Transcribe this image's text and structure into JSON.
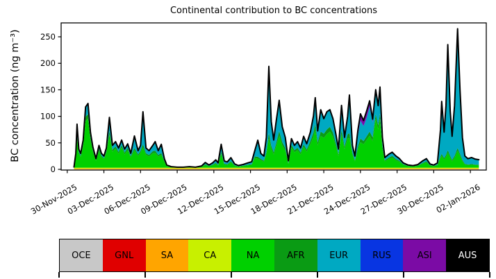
{
  "figure": {
    "title": "Continental contribution to BC concentrations",
    "ylabel": "BC concentration (ng m⁻³)"
  },
  "chart_data": {
    "type": "area",
    "stacked": true,
    "title": "Continental contribution to BC concentrations",
    "xlabel": "",
    "ylabel": "BC concentration (ng m⁻³)",
    "grid": false,
    "legend_position": "bottom-strip",
    "ylim": [
      -1.3,
      276.2
    ],
    "xlim_days": [
      -0.5,
      34.3
    ],
    "x_unit": "days since 30-Nov-2025 00:00",
    "yticks": [
      0,
      50,
      100,
      150,
      200,
      250
    ],
    "xticks": {
      "day_offsets": [
        0,
        3,
        6,
        9,
        12,
        15,
        18,
        21,
        24,
        27,
        30,
        33
      ],
      "labels": [
        "30-Nov-2025",
        "03-Dec-2025",
        "06-Dec-2025",
        "09-Dec-2025",
        "12-Dec-2025",
        "15-Dec-2025",
        "18-Dec-2025",
        "21-Dec-2025",
        "24-Dec-2025",
        "27-Dec-2025",
        "30-Dec-2025",
        "02-Jan-2026"
      ]
    },
    "series_order": [
      "OCE",
      "GNL",
      "SA",
      "CA",
      "NA",
      "AFR",
      "EUR",
      "RUS",
      "ASI",
      "AUS"
    ],
    "colors": {
      "OCE": "#c8c8c8",
      "GNL": "#e00000",
      "SA": "#ffa500",
      "CA": "#c8f000",
      "NA": "#00d000",
      "AFR": "#0a9b14",
      "EUR": "#00a9c2",
      "RUS": "#0835e2",
      "ASI": "#7b0ba5",
      "AUS": "#000000"
    },
    "total_line_color": "#000000",
    "t_days": [
      0.55,
      0.7,
      0.8,
      0.95,
      1.1,
      1.3,
      1.5,
      1.7,
      1.9,
      2.1,
      2.35,
      2.6,
      2.8,
      3.0,
      3.2,
      3.45,
      3.7,
      3.95,
      4.2,
      4.45,
      4.7,
      4.95,
      5.2,
      5.5,
      5.8,
      6.0,
      6.2,
      6.45,
      6.7,
      7.0,
      7.2,
      7.45,
      7.7,
      7.95,
      8.15,
      8.5,
      9.0,
      9.5,
      10.0,
      10.5,
      11.0,
      11.3,
      11.6,
      11.9,
      12.15,
      12.35,
      12.6,
      12.85,
      13.1,
      13.4,
      13.7,
      14.0,
      14.4,
      14.8,
      15.1,
      15.35,
      15.6,
      15.85,
      16.1,
      16.3,
      16.5,
      16.7,
      16.9,
      17.1,
      17.35,
      17.6,
      17.85,
      18.1,
      18.35,
      18.6,
      18.85,
      19.1,
      19.35,
      19.6,
      19.9,
      20.15,
      20.3,
      20.5,
      20.75,
      21.0,
      21.25,
      21.5,
      21.75,
      22.0,
      22.2,
      22.45,
      22.7,
      22.95,
      23.1,
      23.35,
      23.55,
      23.8,
      24.0,
      24.25,
      24.5,
      24.75,
      25.0,
      25.25,
      25.45,
      25.6,
      25.8,
      26.0,
      26.3,
      26.6,
      26.9,
      27.2,
      27.5,
      27.9,
      28.3,
      28.7,
      29.1,
      29.4,
      29.7,
      30.0,
      30.3,
      30.55,
      30.65,
      30.85,
      31.0,
      31.15,
      31.35,
      31.5,
      31.7,
      31.95,
      32.15,
      32.35,
      32.55,
      32.8,
      33.1,
      33.4,
      33.7
    ],
    "series": {
      "OCE": {
        "const": 0.2
      },
      "GNL": {
        "const": 0
      },
      "SA": {
        "const": 1.2
      },
      "CA": {
        "const": 1.8
      },
      "NA": {
        "values": [
          0.5,
          20,
          54,
          26,
          20,
          40,
          88,
          92,
          52,
          30,
          13,
          32,
          20,
          16,
          28,
          62,
          30,
          36,
          26,
          38,
          25,
          33,
          19,
          33,
          22,
          28,
          38,
          24,
          21,
          27,
          28,
          21,
          24,
          11,
          3,
          1,
          0.5,
          0.5,
          1,
          0.5,
          1.5,
          5,
          2.5,
          4.5,
          7,
          4,
          26,
          6,
          5,
          10,
          3.5,
          2,
          3,
          4.5,
          5,
          18,
          17,
          14,
          11,
          25,
          55,
          35,
          25,
          40,
          60,
          42,
          32,
          7,
          38,
          29,
          33,
          25,
          39,
          30,
          44,
          58,
          72,
          42,
          60,
          56,
          63,
          68,
          58,
          40,
          22,
          62,
          35,
          55,
          56,
          24,
          12,
          35,
          48,
          44,
          52,
          60,
          50,
          92,
          72,
          92,
          36,
          12,
          16,
          19,
          14,
          11,
          5.5,
          3,
          2.3,
          3.5,
          7.5,
          10,
          4,
          2.8,
          4.5,
          18,
          22,
          15,
          20,
          28,
          18,
          12,
          18,
          32,
          22,
          12,
          6,
          5,
          5.5,
          4.8,
          4.5
        ]
      },
      "AFR": {
        "values": [
          0.3,
          2,
          5,
          3,
          2.5,
          4,
          8,
          9,
          5,
          3.5,
          1.5,
          4,
          2.5,
          2,
          3,
          7,
          4,
          4,
          3.5,
          4.5,
          3.5,
          4,
          2.5,
          4,
          3,
          3.5,
          6,
          3,
          3,
          4,
          4,
          3,
          3.5,
          1.8,
          0.8,
          0.4,
          0.2,
          0.2,
          0.4,
          0.2,
          0.5,
          1.5,
          0.8,
          1.2,
          1.8,
          1.2,
          4,
          1.5,
          1.3,
          2,
          1,
          0.6,
          0.8,
          1.2,
          1.5,
          3,
          3.5,
          2.5,
          2,
          4,
          10,
          6,
          4,
          6,
          9,
          6,
          5,
          1.5,
          5,
          4,
          4.5,
          3.5,
          5,
          4,
          6,
          8,
          10,
          6,
          8,
          8,
          9,
          9,
          8,
          5,
          3.5,
          9,
          5,
          8,
          9,
          3.5,
          2,
          5,
          7,
          6,
          7,
          8,
          7,
          9,
          8,
          10,
          5,
          2,
          2.5,
          3,
          2.3,
          1.8,
          1,
          0.8,
          0.6,
          0.8,
          1.5,
          2,
          0.9,
          0.7,
          1,
          3,
          4,
          3,
          4,
          5,
          4,
          2.5,
          4,
          5,
          4,
          2.5,
          1.3,
          1,
          1.2,
          1,
          1
        ]
      },
      "EUR": {
        "values": [
          0.3,
          4,
          20,
          5,
          3.5,
          7,
          17,
          18,
          9,
          5,
          2,
          5.5,
          4,
          3.5,
          5.5,
          25,
          7.5,
          8.5,
          7,
          9,
          6,
          7.5,
          5,
          22,
          6.5,
          10,
          60,
          9.5,
          7.5,
          10.5,
          16.5,
          7.5,
          16,
          3.8,
          1,
          0.4,
          0.1,
          0.1,
          0.4,
          0.1,
          0.8,
          2.5,
          1.2,
          2.3,
          3.5,
          2,
          8,
          3,
          3,
          4.5,
          1.8,
          1,
          1.7,
          2.5,
          3.5,
          9.5,
          30,
          9.5,
          8,
          26,
          120,
          43,
          21,
          39,
          55,
          27,
          19,
          3.8,
          11,
          8.5,
          11,
          8,
          14.5,
          10.5,
          16.5,
          30,
          48,
          20,
          40,
          27,
          32,
          31,
          25,
          16.5,
          9,
          45,
          16.5,
          32,
          60,
          12,
          6,
          21,
          33,
          28,
          34,
          46,
          28,
          44,
          35,
          48,
          15,
          4.5,
          6,
          6.5,
          5.2,
          3.8,
          2,
          1,
          0.9,
          1.5,
          3.5,
          4.5,
          1.9,
          1.3,
          3,
          49,
          96,
          46,
          90,
          195,
          82,
          43,
          92,
          221,
          118,
          41,
          14,
          10.3,
          11.6,
          9.5,
          8.8
        ]
      },
      "RUS": {
        "values": [
          0.1,
          0.5,
          2,
          0.5,
          0.5,
          0.5,
          1,
          1.5,
          0.5,
          0.3,
          0.3,
          0.3,
          0.3,
          0.3,
          0.3,
          0.5,
          0.3,
          0.3,
          0.3,
          0.3,
          0.3,
          0.3,
          0.3,
          0.5,
          0.3,
          0.3,
          1,
          0.3,
          0.3,
          0.3,
          0.3,
          0.3,
          0.3,
          0.2,
          0,
          0,
          0,
          0,
          0,
          0,
          0.2,
          0.3,
          0.2,
          0.3,
          0.5,
          0.3,
          2,
          0.5,
          0.5,
          0.5,
          0.3,
          0.2,
          0.2,
          0.3,
          0.3,
          0.8,
          0.8,
          0.5,
          0.5,
          1,
          3,
          2,
          1,
          1,
          1.5,
          1,
          0.5,
          0.5,
          0.5,
          0.3,
          0.3,
          0.3,
          0.3,
          0.3,
          0.3,
          0.8,
          1,
          0.8,
          0.8,
          0.8,
          0.8,
          0.8,
          0.8,
          0.3,
          0.3,
          0.8,
          0.3,
          0.8,
          2,
          0.8,
          0.5,
          1,
          1.5,
          1,
          1.5,
          2,
          1.5,
          1,
          1,
          1,
          0.5,
          0.3,
          0.3,
          0.3,
          0.3,
          0.2,
          0.3,
          0,
          0,
          0,
          0.3,
          0.3,
          0,
          0,
          0.3,
          1.5,
          2.5,
          2.5,
          2.5,
          3,
          2.5,
          1.3,
          2.5,
          3,
          2.5,
          1,
          0.5,
          0.5,
          0.5,
          0.5,
          0.5
        ]
      },
      "ASI": {
        "values": [
          0,
          0.3,
          1,
          0.3,
          0.3,
          0.3,
          0.5,
          0.5,
          0.2,
          0.2,
          0.2,
          0.2,
          0.2,
          0.2,
          0.2,
          0.3,
          0.2,
          0.2,
          0.2,
          0.2,
          0.2,
          0.2,
          0.2,
          0.3,
          0.2,
          0.2,
          0.5,
          0.2,
          0.2,
          0.2,
          0.2,
          0.2,
          0.2,
          0.2,
          0.1,
          0.1,
          0.1,
          0.1,
          0.1,
          0.1,
          0.2,
          0.5,
          0.3,
          0.8,
          2,
          1.6,
          4,
          1.8,
          1,
          1.8,
          0.5,
          0.2,
          0.3,
          0.6,
          0.8,
          0.5,
          0.5,
          0.3,
          0.3,
          1,
          3,
          1,
          1,
          1,
          1.5,
          1,
          0.5,
          0.2,
          0.3,
          0.3,
          0.3,
          0.3,
          0.3,
          0.3,
          0.3,
          0.5,
          1,
          0.5,
          0.5,
          0.5,
          0.5,
          0.5,
          0.5,
          0.3,
          0.3,
          0.5,
          0.3,
          1,
          10,
          1.5,
          1.3,
          10,
          12,
          10,
          12,
          10,
          5,
          1,
          1,
          1,
          0.5,
          0.3,
          0.3,
          0.3,
          0.3,
          0.2,
          0.2,
          0.1,
          0.1,
          0.1,
          0.2,
          0.2,
          0.1,
          0.1,
          0.2,
          0.5,
          0.5,
          0.5,
          0.5,
          1,
          0.5,
          0.3,
          0.5,
          1,
          0.5,
          0.3,
          0.2,
          0.2,
          0.2,
          0.2,
          0.2
        ]
      },
      "AUS": {
        "const": 0
      }
    },
    "legend": {
      "items": [
        {
          "label": "OCE",
          "color": "#c8c8c8",
          "text_color": "#000000"
        },
        {
          "label": "GNL",
          "color": "#e00000",
          "text_color": "#000000"
        },
        {
          "label": "SA",
          "color": "#ffa500",
          "text_color": "#000000"
        },
        {
          "label": "CA",
          "color": "#c8f000",
          "text_color": "#000000"
        },
        {
          "label": "NA",
          "color": "#00d000",
          "text_color": "#000000"
        },
        {
          "label": "AFR",
          "color": "#0a9b14",
          "text_color": "#000000"
        },
        {
          "label": "EUR",
          "color": "#00a9c2",
          "text_color": "#000000"
        },
        {
          "label": "RUS",
          "color": "#0835e2",
          "text_color": "#000000"
        },
        {
          "label": "ASI",
          "color": "#7b0ba5",
          "text_color": "#000000"
        },
        {
          "label": "AUS",
          "color": "#000000",
          "text_color": "#ffffff"
        }
      ]
    }
  }
}
